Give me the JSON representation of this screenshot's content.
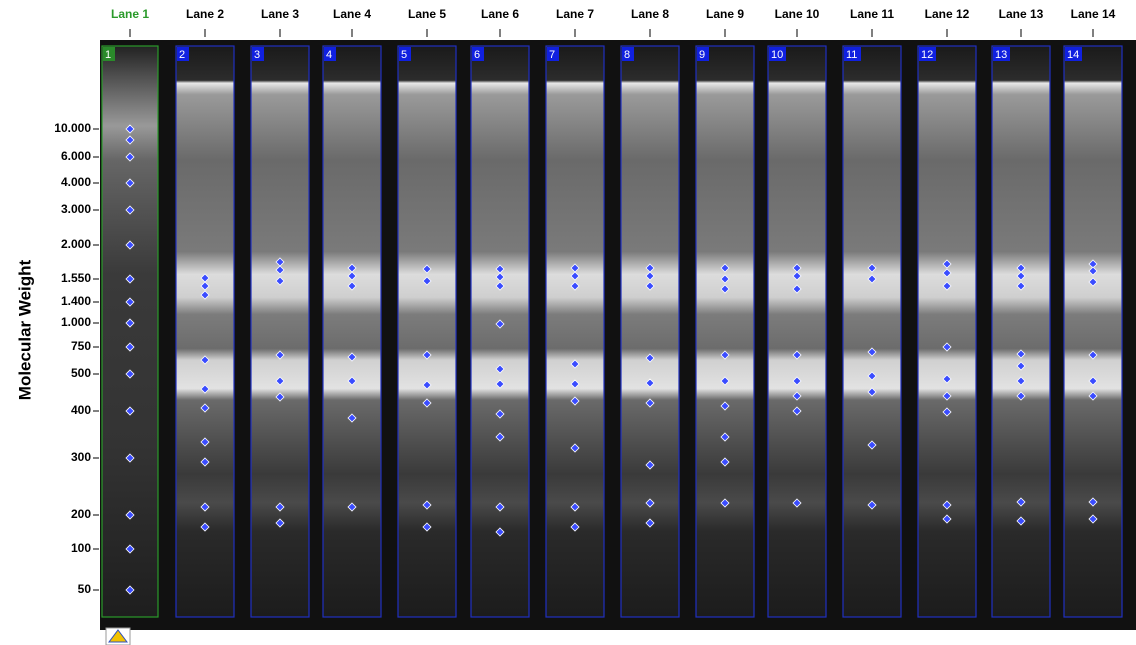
{
  "lanes": {
    "headers": [
      "Lane 1",
      "Lane 2",
      "Lane 3",
      "Lane 4",
      "Lane 5",
      "Lane 6",
      "Lane 7",
      "Lane 8",
      "Lane 9",
      "Lane 10",
      "Lane 11",
      "Lane 12",
      "Lane 13",
      "Lane 14"
    ],
    "numbers": [
      "1",
      "2",
      "3",
      "4",
      "5",
      "6",
      "7",
      "8",
      "9",
      "10",
      "11",
      "12",
      "13",
      "14"
    ]
  },
  "axis": {
    "title": "Molecular Weight",
    "labels": [
      "10.000",
      "6.000",
      "4.000",
      "3.000",
      "2.000",
      "1.550",
      "1.400",
      "1.000",
      "750",
      "500",
      "400",
      "300",
      "200",
      "100",
      "50"
    ]
  }
}
